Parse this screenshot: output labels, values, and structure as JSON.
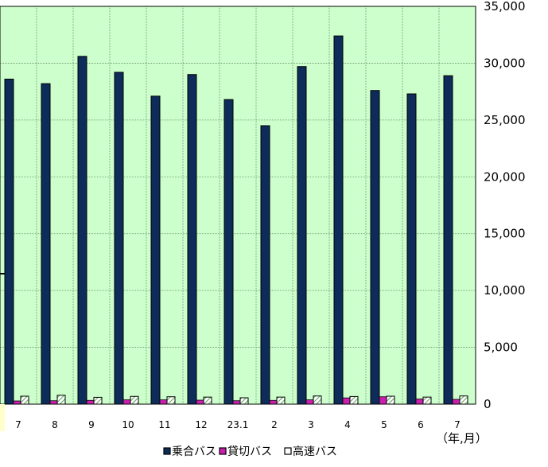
{
  "chart_data": {
    "type": "bar",
    "categories": [
      "7",
      "8",
      "9",
      "10",
      "11",
      "12",
      "23.1",
      "2",
      "3",
      "4",
      "5",
      "6",
      "7"
    ],
    "series": [
      {
        "name": "乗合バス",
        "color": "#0d2c5a",
        "values": [
          28600,
          28200,
          30600,
          29200,
          27100,
          29000,
          26800,
          24500,
          29700,
          32400,
          27600,
          27300,
          28900
        ]
      },
      {
        "name": "貸切バス",
        "color": "#cc1fb0",
        "values": [
          280,
          300,
          330,
          380,
          380,
          350,
          300,
          330,
          380,
          550,
          650,
          450,
          420
        ]
      },
      {
        "name": "高速バス",
        "color": "#ffffff",
        "values": [
          700,
          780,
          600,
          680,
          650,
          620,
          560,
          620,
          720,
          670,
          700,
          620,
          720
        ]
      }
    ],
    "ylim": [
      0,
      35000
    ],
    "y_ticks": [
      "0",
      "5,000",
      "10,000",
      "15,000",
      "20,000",
      "25,000",
      "30,000",
      "35,000"
    ],
    "x_unit_label": "（年,月）",
    "grid": true,
    "legend_position": "bottom-center",
    "plot_background": "#ccffcc"
  }
}
